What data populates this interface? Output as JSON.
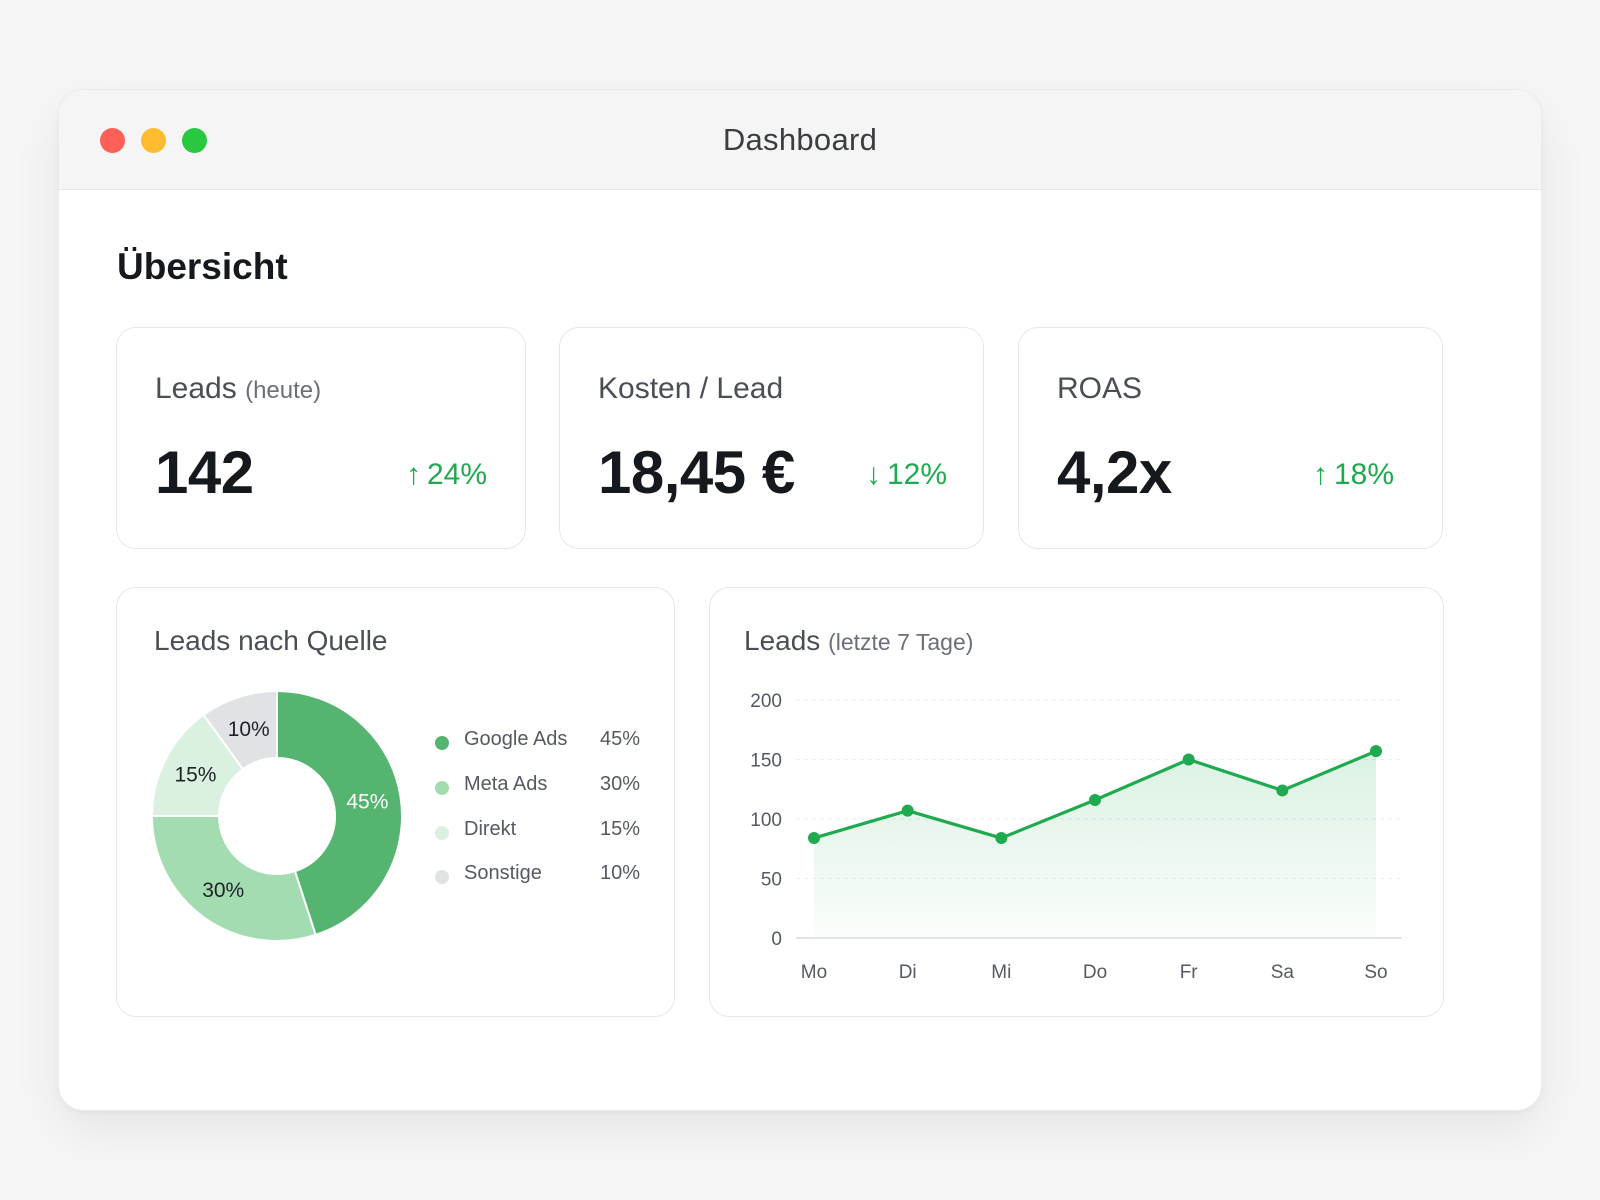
{
  "window": {
    "title": "Dashboard"
  },
  "section_title": "Übersicht",
  "kpis": [
    {
      "label": "Leads",
      "sublabel": "(heute)",
      "value": "142",
      "delta": "24%",
      "direction": "up"
    },
    {
      "label": "Kosten / Lead",
      "sublabel": "",
      "value": "18,45 €",
      "delta": "12%",
      "direction": "down"
    },
    {
      "label": "ROAS",
      "sublabel": "",
      "value": "4,2x",
      "delta": "18%",
      "direction": "up"
    }
  ],
  "arrows": {
    "up": "↑",
    "down": "↓"
  },
  "colors": {
    "accent_green": "#1faa4f",
    "google_ads": "#55b570",
    "meta_ads": "#a4dcb1",
    "direkt": "#daf1df",
    "sonstige": "#e1e2e5",
    "line": "#1faa4f"
  },
  "donut": {
    "title": "Leads nach Quelle",
    "legend": [
      {
        "name": "Google Ads",
        "pct": "45%"
      },
      {
        "name": "Meta Ads",
        "pct": "30%"
      },
      {
        "name": "Direkt",
        "pct": "15%"
      },
      {
        "name": "Sonstige",
        "pct": "10%"
      }
    ]
  },
  "line_panel": {
    "title": "Leads",
    "sublabel": "(letzte 7 Tage)"
  },
  "chart_data": [
    {
      "type": "pie",
      "title": "Leads nach Quelle",
      "categories": [
        "Google Ads",
        "Meta Ads",
        "Direkt",
        "Sonstige"
      ],
      "values": [
        45,
        30,
        15,
        10
      ],
      "labels": [
        "45%",
        "30%",
        "15%",
        "10%"
      ],
      "legend": "right"
    },
    {
      "type": "area",
      "title": "Leads (letzte 7 Tage)",
      "categories": [
        "Mo",
        "Di",
        "Mi",
        "Do",
        "Fr",
        "Sa",
        "So"
      ],
      "values": [
        84,
        107,
        84,
        116,
        150,
        124,
        157
      ],
      "ylim": [
        0,
        200
      ],
      "yticks": [
        0,
        50,
        100,
        150,
        200
      ],
      "grid": true
    }
  ]
}
